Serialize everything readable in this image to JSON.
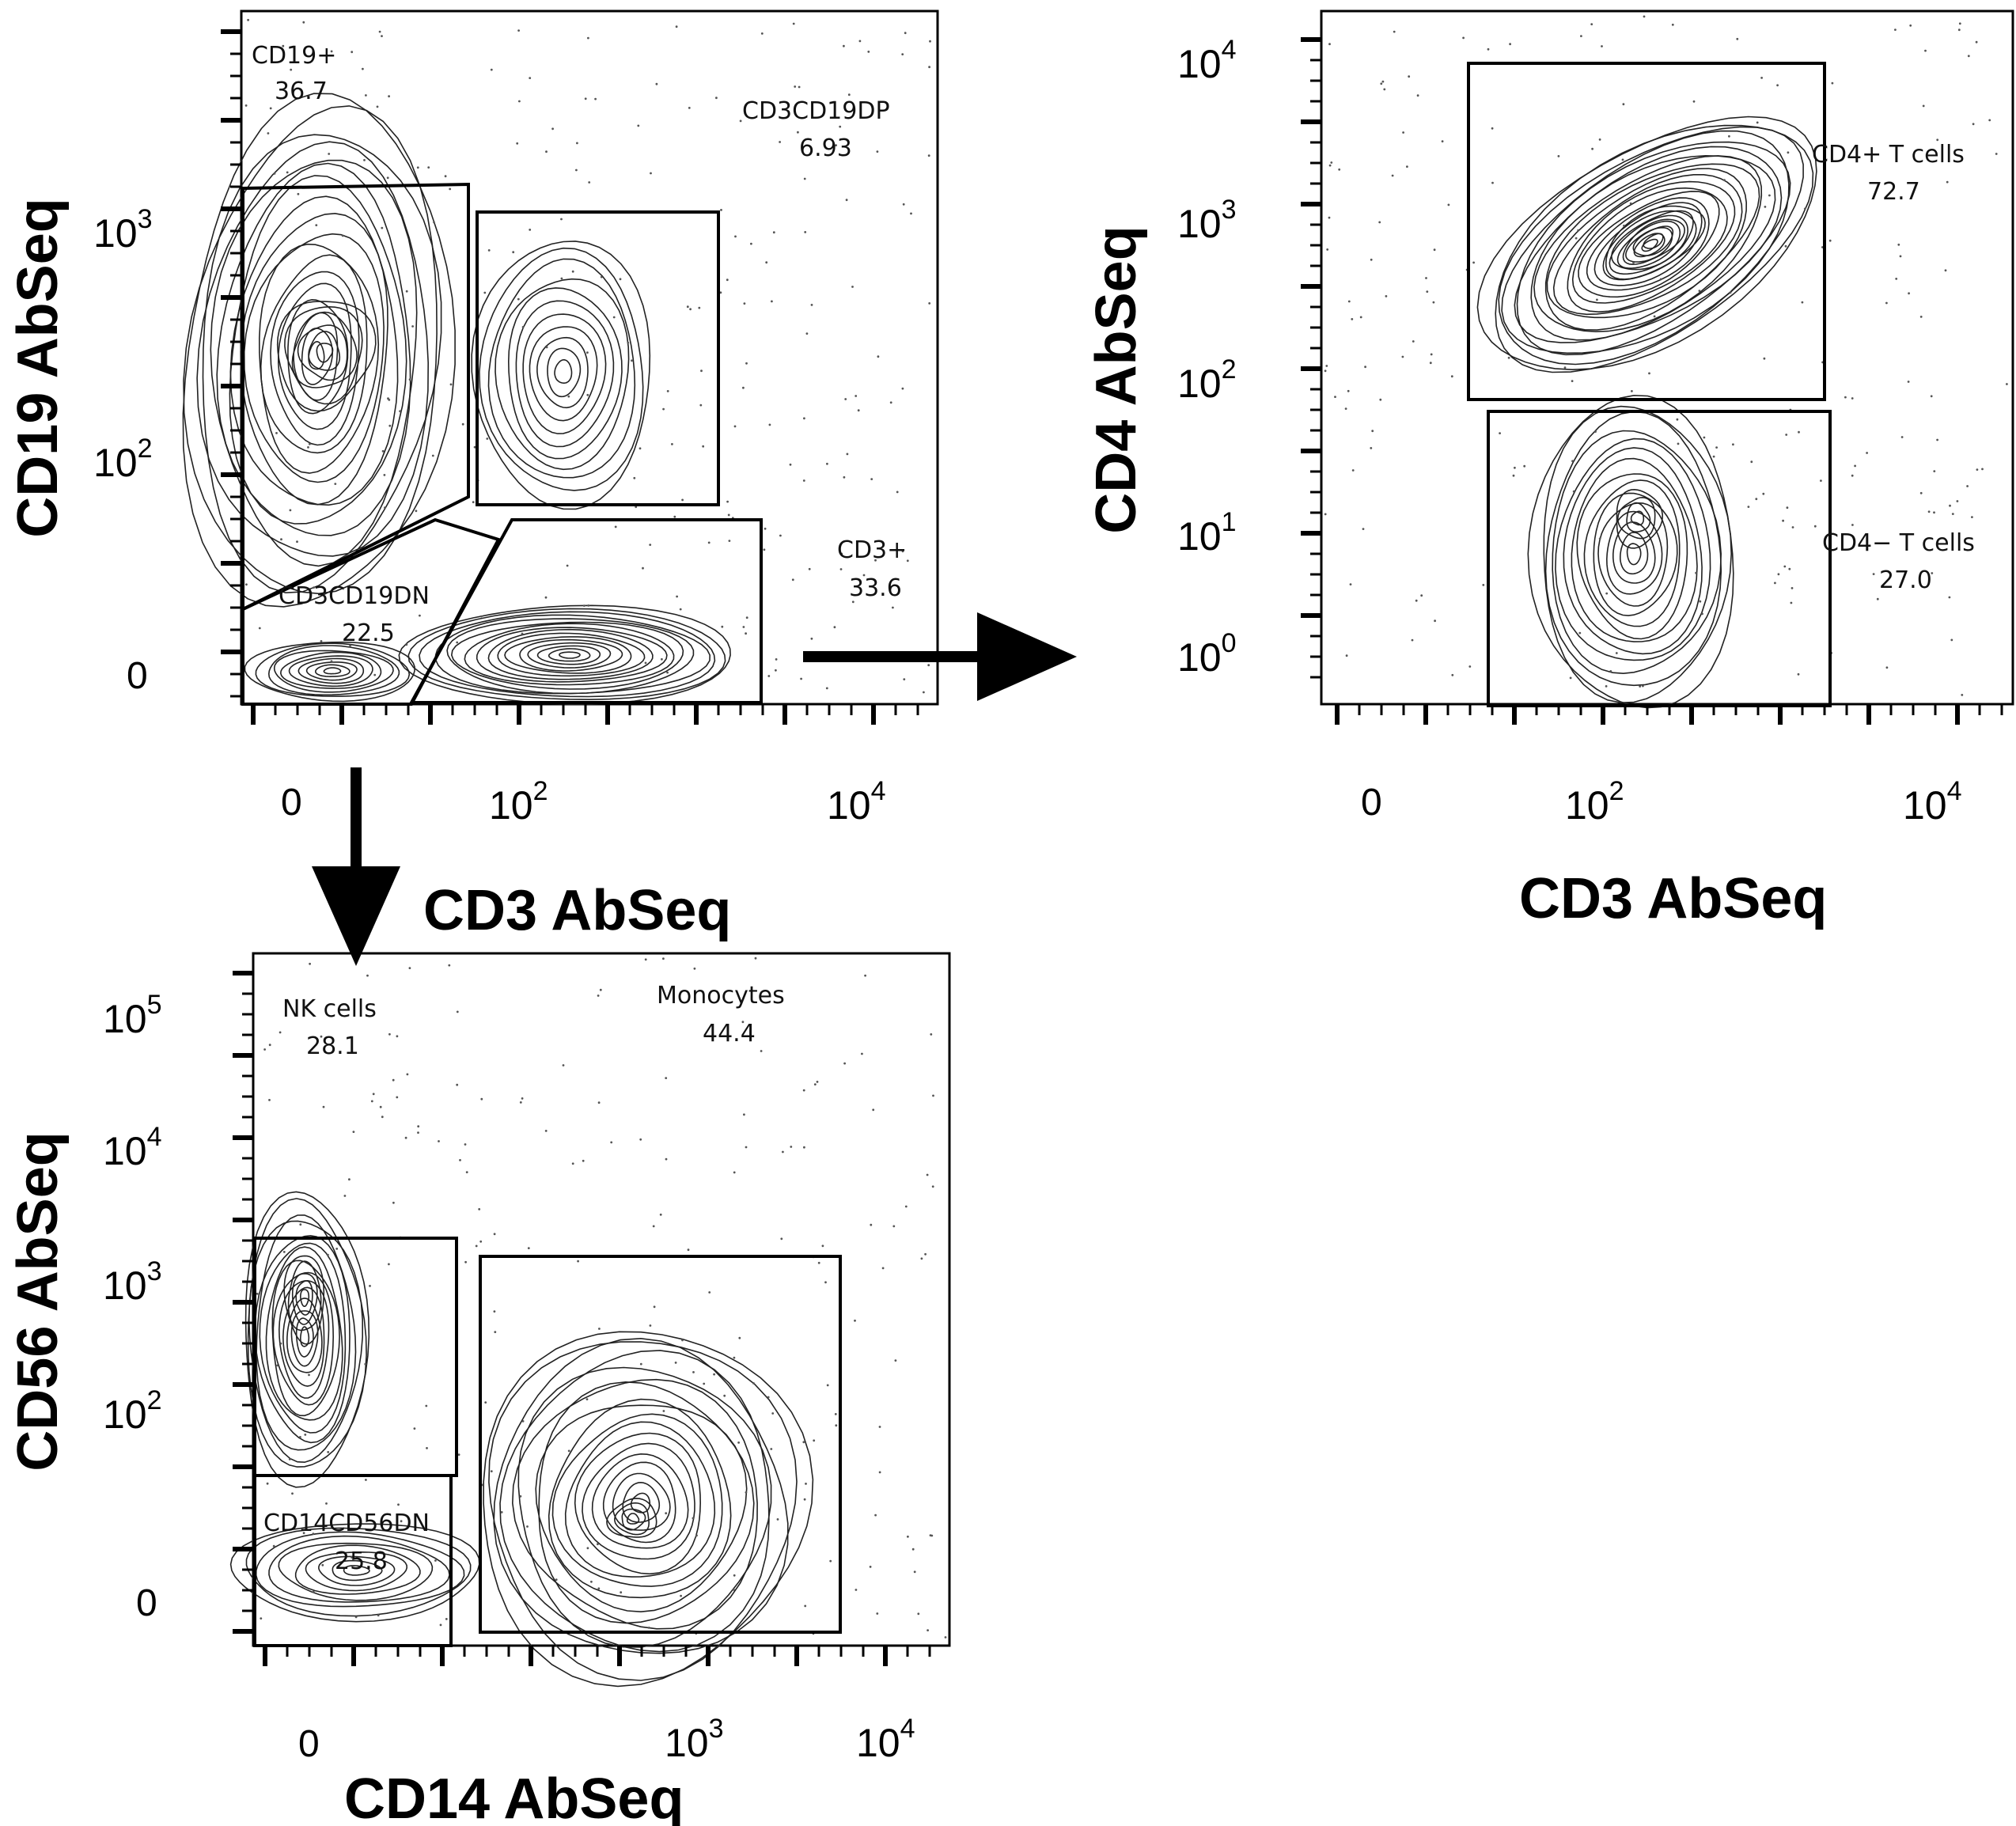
{
  "chart_data": [
    {
      "type": "contour",
      "xlabel": "CD3 AbSeq",
      "ylabel": "CD19 AbSeq",
      "xscale": "biexponential",
      "yscale": "biexponential",
      "x_ticks": [
        "0",
        "10^2",
        "10^4"
      ],
      "y_ticks": [
        "0",
        "10^2",
        "10^3"
      ],
      "gates": [
        {
          "name": "CD19+",
          "percent": "36.7"
        },
        {
          "name": "CD3CD19DP",
          "percent": "6.93"
        },
        {
          "name": "CD3CD19DN",
          "percent": "22.5"
        },
        {
          "name": "CD3+",
          "percent": "33.6"
        }
      ]
    },
    {
      "type": "contour",
      "xlabel": "CD3 AbSeq",
      "ylabel": "CD4 AbSeq",
      "xscale": "biexponential",
      "yscale": "biexponential",
      "x_ticks": [
        "0",
        "10^2",
        "10^4"
      ],
      "y_ticks": [
        "10^0",
        "10^1",
        "10^2",
        "10^3",
        "10^4"
      ],
      "gates": [
        {
          "name": "CD4+ T cells",
          "percent": "72.7"
        },
        {
          "name": "CD4− T cells",
          "percent": "27.0"
        }
      ]
    },
    {
      "type": "contour",
      "xlabel": "CD14 AbSeq",
      "ylabel": "CD56 AbSeq",
      "xscale": "biexponential",
      "yscale": "biexponential",
      "x_ticks": [
        "0",
        "10^3",
        "10^4"
      ],
      "y_ticks": [
        "0",
        "10^2",
        "10^3",
        "10^4",
        "10^5"
      ],
      "gates": [
        {
          "name": "NK cells",
          "percent": "28.1"
        },
        {
          "name": "Monocytes",
          "percent": "44.4"
        },
        {
          "name": "CD14CD56DN",
          "percent": "25.8"
        }
      ]
    }
  ],
  "flow": [
    "CD3+ → CD4 vs CD3 plot",
    "CD3CD19DN → CD56 vs CD14 plot"
  ],
  "colors": {
    "ink": "#000000",
    "contour": "#222222"
  }
}
